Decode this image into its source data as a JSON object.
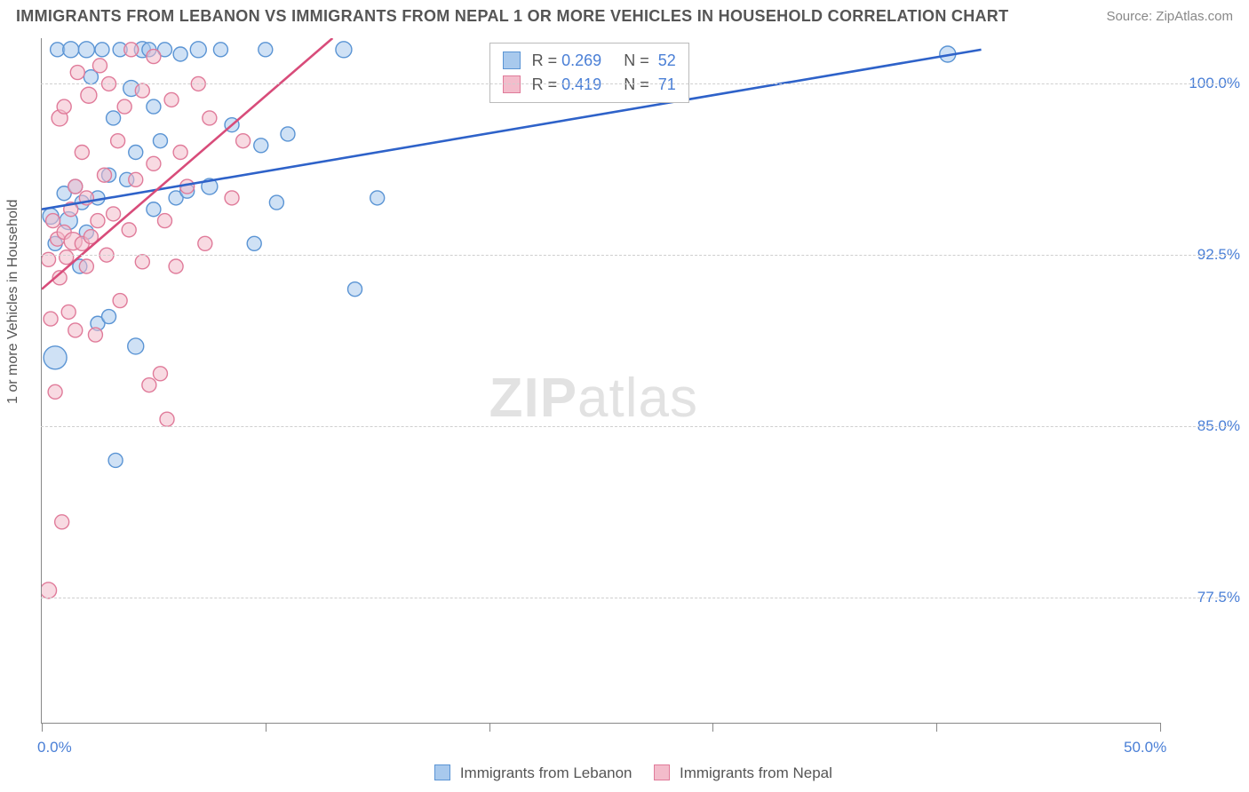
{
  "header": {
    "title": "IMMIGRANTS FROM LEBANON VS IMMIGRANTS FROM NEPAL 1 OR MORE VEHICLES IN HOUSEHOLD CORRELATION CHART",
    "source": "Source: ZipAtlas.com"
  },
  "chart": {
    "type": "scatter",
    "y_axis_label": "1 or more Vehicles in Household",
    "xlim": [
      0,
      50
    ],
    "ylim": [
      72,
      102
    ],
    "x_ticks": [
      0,
      10,
      20,
      30,
      40,
      50
    ],
    "x_tick_labels": [
      "0.0%",
      "",
      "",
      "",
      "",
      "50.0%"
    ],
    "y_ticks": [
      77.5,
      85.0,
      92.5,
      100.0
    ],
    "y_tick_labels": [
      "77.5%",
      "85.0%",
      "92.5%",
      "100.0%"
    ],
    "grid_color": "#d0d0d0",
    "axis_color": "#888888",
    "background_color": "#ffffff",
    "watermark": "ZIPatlas",
    "series": [
      {
        "name": "Immigrants from Lebanon",
        "fill": "#a8c9ed",
        "stroke": "#5a94d4",
        "line_color": "#2e62c9",
        "r_value": "0.269",
        "n_value": "52",
        "trend": {
          "x1": 0,
          "y1": 94.5,
          "x2": 42,
          "y2": 101.5
        },
        "points": [
          {
            "x": 0.4,
            "y": 94.2,
            "r": 9
          },
          {
            "x": 0.6,
            "y": 88.0,
            "r": 13
          },
          {
            "x": 0.6,
            "y": 93.0,
            "r": 8
          },
          {
            "x": 0.7,
            "y": 101.5,
            "r": 8
          },
          {
            "x": 1.0,
            "y": 95.2,
            "r": 8
          },
          {
            "x": 1.2,
            "y": 94.0,
            "r": 10
          },
          {
            "x": 1.3,
            "y": 101.5,
            "r": 9
          },
          {
            "x": 1.5,
            "y": 95.5,
            "r": 8
          },
          {
            "x": 1.7,
            "y": 92.0,
            "r": 8
          },
          {
            "x": 1.8,
            "y": 94.8,
            "r": 8
          },
          {
            "x": 2.0,
            "y": 101.5,
            "r": 9
          },
          {
            "x": 2.0,
            "y": 93.5,
            "r": 8
          },
          {
            "x": 2.2,
            "y": 100.3,
            "r": 8
          },
          {
            "x": 2.5,
            "y": 89.5,
            "r": 8
          },
          {
            "x": 2.5,
            "y": 95.0,
            "r": 8
          },
          {
            "x": 2.7,
            "y": 101.5,
            "r": 8
          },
          {
            "x": 3.0,
            "y": 96.0,
            "r": 8
          },
          {
            "x": 3.0,
            "y": 89.8,
            "r": 8
          },
          {
            "x": 3.2,
            "y": 98.5,
            "r": 8
          },
          {
            "x": 3.3,
            "y": 83.5,
            "r": 8
          },
          {
            "x": 3.5,
            "y": 101.5,
            "r": 8
          },
          {
            "x": 3.8,
            "y": 95.8,
            "r": 8
          },
          {
            "x": 4.0,
            "y": 99.8,
            "r": 9
          },
          {
            "x": 4.2,
            "y": 88.5,
            "r": 9
          },
          {
            "x": 4.2,
            "y": 97.0,
            "r": 8
          },
          {
            "x": 4.5,
            "y": 101.5,
            "r": 9
          },
          {
            "x": 4.8,
            "y": 101.5,
            "r": 8
          },
          {
            "x": 5.0,
            "y": 94.5,
            "r": 8
          },
          {
            "x": 5.0,
            "y": 99.0,
            "r": 8
          },
          {
            "x": 5.3,
            "y": 97.5,
            "r": 8
          },
          {
            "x": 5.5,
            "y": 101.5,
            "r": 8
          },
          {
            "x": 6.0,
            "y": 95.0,
            "r": 8
          },
          {
            "x": 6.2,
            "y": 101.3,
            "r": 8
          },
          {
            "x": 6.5,
            "y": 95.3,
            "r": 8
          },
          {
            "x": 7.0,
            "y": 101.5,
            "r": 9
          },
          {
            "x": 7.5,
            "y": 95.5,
            "r": 9
          },
          {
            "x": 8.0,
            "y": 101.5,
            "r": 8
          },
          {
            "x": 8.5,
            "y": 98.2,
            "r": 8
          },
          {
            "x": 9.5,
            "y": 93.0,
            "r": 8
          },
          {
            "x": 9.8,
            "y": 97.3,
            "r": 8
          },
          {
            "x": 10.0,
            "y": 101.5,
            "r": 8
          },
          {
            "x": 10.5,
            "y": 94.8,
            "r": 8
          },
          {
            "x": 11.0,
            "y": 97.8,
            "r": 8
          },
          {
            "x": 13.5,
            "y": 101.5,
            "r": 9
          },
          {
            "x": 14.0,
            "y": 91.0,
            "r": 8
          },
          {
            "x": 15.0,
            "y": 95.0,
            "r": 8
          },
          {
            "x": 40.5,
            "y": 101.3,
            "r": 9
          }
        ]
      },
      {
        "name": "Immigrants from Nepal",
        "fill": "#f3bccb",
        "stroke": "#e07b9a",
        "line_color": "#d84c7a",
        "r_value": "0.419",
        "n_value": "71",
        "trend": {
          "x1": 0,
          "y1": 91.0,
          "x2": 13,
          "y2": 102.0
        },
        "points": [
          {
            "x": 0.3,
            "y": 77.8,
            "r": 9
          },
          {
            "x": 0.3,
            "y": 92.3,
            "r": 8
          },
          {
            "x": 0.4,
            "y": 89.7,
            "r": 8
          },
          {
            "x": 0.5,
            "y": 94.0,
            "r": 8
          },
          {
            "x": 0.6,
            "y": 86.5,
            "r": 8
          },
          {
            "x": 0.7,
            "y": 93.2,
            "r": 8
          },
          {
            "x": 0.8,
            "y": 98.5,
            "r": 9
          },
          {
            "x": 0.8,
            "y": 91.5,
            "r": 8
          },
          {
            "x": 0.9,
            "y": 80.8,
            "r": 8
          },
          {
            "x": 1.0,
            "y": 93.5,
            "r": 8
          },
          {
            "x": 1.0,
            "y": 99.0,
            "r": 8
          },
          {
            "x": 1.1,
            "y": 92.4,
            "r": 8
          },
          {
            "x": 1.2,
            "y": 90.0,
            "r": 8
          },
          {
            "x": 1.3,
            "y": 94.5,
            "r": 8
          },
          {
            "x": 1.4,
            "y": 93.1,
            "r": 10
          },
          {
            "x": 1.5,
            "y": 95.5,
            "r": 8
          },
          {
            "x": 1.5,
            "y": 89.2,
            "r": 8
          },
          {
            "x": 1.6,
            "y": 100.5,
            "r": 8
          },
          {
            "x": 1.8,
            "y": 93.0,
            "r": 8
          },
          {
            "x": 1.8,
            "y": 97.0,
            "r": 8
          },
          {
            "x": 2.0,
            "y": 92.0,
            "r": 8
          },
          {
            "x": 2.0,
            "y": 95.0,
            "r": 8
          },
          {
            "x": 2.1,
            "y": 99.5,
            "r": 9
          },
          {
            "x": 2.2,
            "y": 93.3,
            "r": 8
          },
          {
            "x": 2.4,
            "y": 89.0,
            "r": 8
          },
          {
            "x": 2.5,
            "y": 94.0,
            "r": 8
          },
          {
            "x": 2.6,
            "y": 100.8,
            "r": 8
          },
          {
            "x": 2.8,
            "y": 96.0,
            "r": 8
          },
          {
            "x": 2.9,
            "y": 92.5,
            "r": 8
          },
          {
            "x": 3.0,
            "y": 100.0,
            "r": 8
          },
          {
            "x": 3.2,
            "y": 94.3,
            "r": 8
          },
          {
            "x": 3.4,
            "y": 97.5,
            "r": 8
          },
          {
            "x": 3.5,
            "y": 90.5,
            "r": 8
          },
          {
            "x": 3.7,
            "y": 99.0,
            "r": 8
          },
          {
            "x": 3.9,
            "y": 93.6,
            "r": 8
          },
          {
            "x": 4.0,
            "y": 101.5,
            "r": 8
          },
          {
            "x": 4.2,
            "y": 95.8,
            "r": 8
          },
          {
            "x": 4.5,
            "y": 92.2,
            "r": 8
          },
          {
            "x": 4.5,
            "y": 99.7,
            "r": 8
          },
          {
            "x": 4.8,
            "y": 86.8,
            "r": 8
          },
          {
            "x": 5.0,
            "y": 96.5,
            "r": 8
          },
          {
            "x": 5.0,
            "y": 101.2,
            "r": 8
          },
          {
            "x": 5.3,
            "y": 87.3,
            "r": 8
          },
          {
            "x": 5.5,
            "y": 94.0,
            "r": 8
          },
          {
            "x": 5.6,
            "y": 85.3,
            "r": 8
          },
          {
            "x": 5.8,
            "y": 99.3,
            "r": 8
          },
          {
            "x": 6.0,
            "y": 92.0,
            "r": 8
          },
          {
            "x": 6.2,
            "y": 97.0,
            "r": 8
          },
          {
            "x": 6.5,
            "y": 95.5,
            "r": 8
          },
          {
            "x": 7.0,
            "y": 100.0,
            "r": 8
          },
          {
            "x": 7.3,
            "y": 93.0,
            "r": 8
          },
          {
            "x": 7.5,
            "y": 98.5,
            "r": 8
          },
          {
            "x": 8.5,
            "y": 95.0,
            "r": 8
          },
          {
            "x": 9.0,
            "y": 97.5,
            "r": 8
          }
        ]
      }
    ],
    "legend_labels": {
      "lebanon": "Immigrants from Lebanon",
      "nepal": "Immigrants from Nepal"
    }
  }
}
